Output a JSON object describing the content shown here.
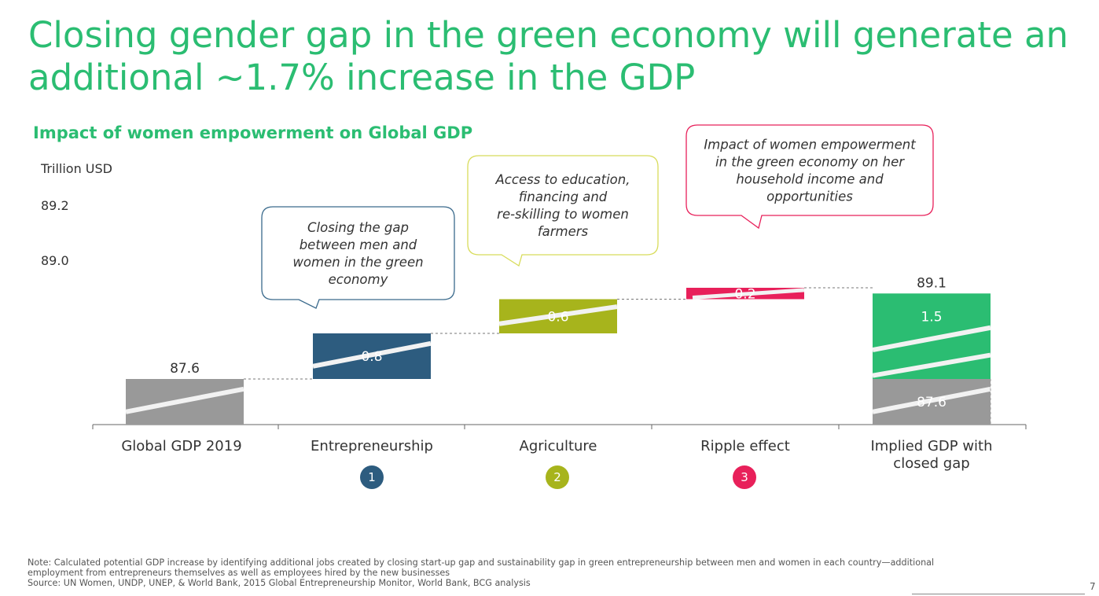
{
  "title": "Closing gender gap in the green economy will generate an additional ~1.7% increase in the GDP",
  "chart_data": {
    "type": "waterfall",
    "title": "Impact of women empowerment on Global GDP",
    "unit_label": "Trillion USD",
    "y_tick_labels": [
      "89.2",
      "89.0"
    ],
    "categories": [
      {
        "label": "Global GDP 2019",
        "step": ""
      },
      {
        "label": "Entrepreneurship",
        "step": "1"
      },
      {
        "label": "Agriculture",
        "step": "2"
      },
      {
        "label": "Ripple effect",
        "step": "3"
      },
      {
        "label": "Implied GDP with closed gap",
        "step": ""
      }
    ],
    "bars": [
      {
        "name": "Global GDP 2019",
        "kind": "total",
        "base": 0,
        "value": 87.6,
        "label": "87.6",
        "color": "#999999"
      },
      {
        "name": "Entrepreneurship",
        "kind": "delta",
        "base": 87.6,
        "value": 0.8,
        "label": "0.8",
        "color": "#2d5c7f"
      },
      {
        "name": "Agriculture",
        "kind": "delta",
        "base": 88.4,
        "value": 0.6,
        "label": "0.6",
        "color": "#a7b41c"
      },
      {
        "name": "Ripple effect",
        "kind": "delta",
        "base": 89.0,
        "value": 0.2,
        "label": "0.2",
        "color": "#e8205a"
      }
    ],
    "final_bar": {
      "name": "Implied GDP with closed gap",
      "total": 89.1,
      "total_label": "89.1",
      "segments": [
        {
          "value": 87.6,
          "label": "87.6",
          "color": "#999999"
        },
        {
          "value": 1.5,
          "label": "1.5",
          "color": "#2bbd72"
        }
      ]
    },
    "callouts": [
      {
        "text": "Closing the gap between men and women in the green economy",
        "border": "#3a6a8c"
      },
      {
        "text": "Access to education, financing and re-skilling to women farmers",
        "border": "#d8dc5a"
      },
      {
        "text": "Impact of women empowerment in the green economy on her household income and opportunities",
        "border": "#e8205a"
      }
    ]
  },
  "footnote": {
    "note": "Note: Calculated potential GDP increase by identifying additional jobs created by closing start-up gap and sustainability gap in green entrepreneurship between men and women in each country—additional employment from entrepreneurs themselves as well as employees hired by the new businesses",
    "source": "Source: UN Women, UNDP, UNEP, & World Bank, 2015 Global Entrepreneurship Monitor, World Bank, BCG analysis"
  },
  "page_number": "7"
}
